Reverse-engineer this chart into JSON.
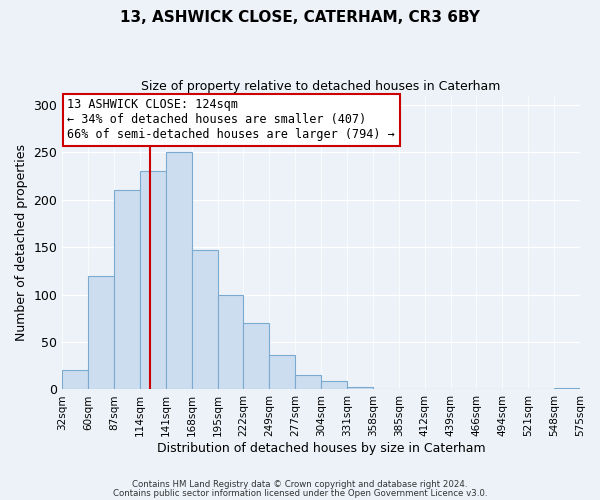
{
  "title": "13, ASHWICK CLOSE, CATERHAM, CR3 6BY",
  "subtitle": "Size of property relative to detached houses in Caterham",
  "xlabel": "Distribution of detached houses by size in Caterham",
  "ylabel": "Number of detached properties",
  "bar_values": [
    20,
    120,
    210,
    230,
    250,
    147,
    100,
    70,
    36,
    15,
    9,
    3,
    0,
    0,
    0,
    0,
    0,
    0,
    0,
    2
  ],
  "tick_labels": [
    "32sqm",
    "60sqm",
    "87sqm",
    "114sqm",
    "141sqm",
    "168sqm",
    "195sqm",
    "222sqm",
    "249sqm",
    "277sqm",
    "304sqm",
    "331sqm",
    "358sqm",
    "385sqm",
    "412sqm",
    "439sqm",
    "466sqm",
    "494sqm",
    "521sqm",
    "548sqm",
    "575sqm"
  ],
  "bar_color": "#ccddf0",
  "bar_edge_color": "#7aaad0",
  "vline_color": "#cc0000",
  "vline_pos": 3.37,
  "annotation_title": "13 ASHWICK CLOSE: 124sqm",
  "annotation_line1": "← 34% of detached houses are smaller (407)",
  "annotation_line2": "66% of semi-detached houses are larger (794) →",
  "annotation_box_edge": "#cc0000",
  "ylim": [
    0,
    310
  ],
  "yticks": [
    0,
    50,
    100,
    150,
    200,
    250,
    300
  ],
  "footer1": "Contains HM Land Registry data © Crown copyright and database right 2024.",
  "footer2": "Contains public sector information licensed under the Open Government Licence v3.0.",
  "bg_color": "#edf2f9",
  "plot_bg_color": "#edf2f9",
  "grid_color": "#ffffff",
  "title_fontsize": 11,
  "subtitle_fontsize": 9,
  "xlabel_fontsize": 9,
  "ylabel_fontsize": 9,
  "tick_fontsize": 7.5,
  "annot_fontsize": 8.5
}
